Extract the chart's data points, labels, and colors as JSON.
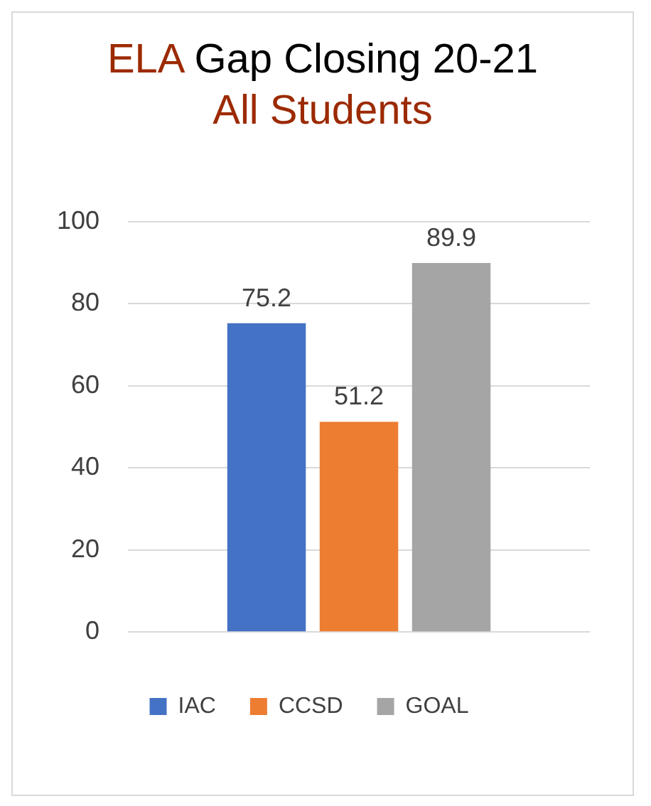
{
  "chart_data": {
    "type": "bar",
    "title": "ELA Gap Closing 20-21",
    "subtitle": "All Students",
    "categories": [
      null
    ],
    "series": [
      {
        "name": "IAC",
        "color": "#4472c4",
        "values": [
          75.2
        ]
      },
      {
        "name": "CCSD",
        "color": "#ed7d31",
        "values": [
          51.2
        ]
      },
      {
        "name": "GOAL",
        "color": "#a5a5a5",
        "values": [
          89.9
        ]
      }
    ],
    "ylim": [
      0,
      100
    ],
    "yticks": [
      0,
      20,
      40,
      60,
      80,
      100
    ],
    "grid": "y",
    "legend": "bottom",
    "data_labels": true
  }
}
